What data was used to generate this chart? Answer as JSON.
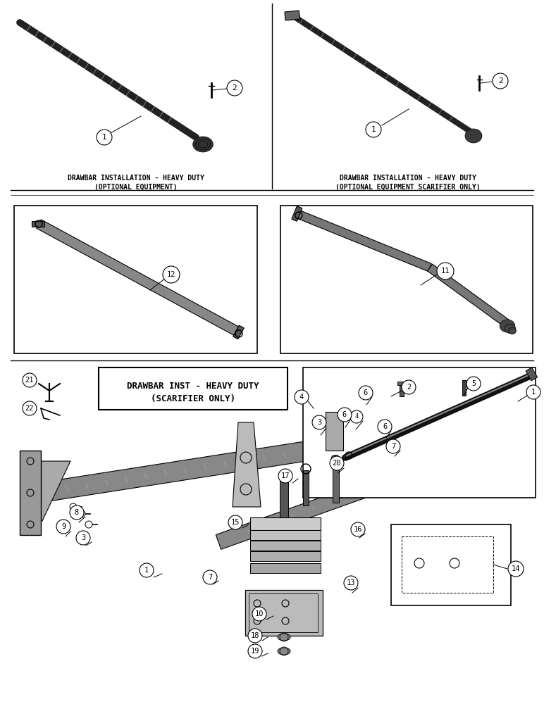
{
  "bg": "#ffffff",
  "page_width": 7.72,
  "page_height": 10.0,
  "captions": {
    "top_left_1": "DRAWBAR INSTALLATION - HEAVY DUTY",
    "top_left_2": "(OPTIONAL EQUIPMENT)",
    "top_right_1": "DRAWBAR INSTALLATION - HEAVY DUTY",
    "top_right_2": "(OPTIONAL EQUIPMENT SCARIFIER ONLY)",
    "bot_title_1": "DRAWBAR INST - HEAVY DUTY",
    "bot_title_2": "(SCARIFIER ONLY)"
  },
  "font": "monospace",
  "cap_fs": 7.0,
  "callout_fs": 7.5,
  "callout_r": 0.013
}
